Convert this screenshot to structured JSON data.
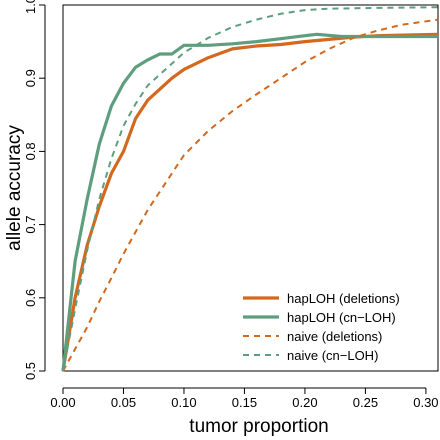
{
  "chart_data": {
    "type": "line",
    "title": "",
    "xlabel": "tumor proportion",
    "ylabel": "allele accuracy",
    "xlim": [
      0.0,
      0.31
    ],
    "ylim": [
      0.5,
      1.0
    ],
    "xticks": [
      "0.00",
      "0.05",
      "0.10",
      "0.15",
      "0.20",
      "0.25",
      "0.30"
    ],
    "yticks": [
      "0.5",
      "0.6",
      "0.7",
      "0.8",
      "0.9",
      "1.0"
    ],
    "grid": false,
    "legend_position": "bottom-right",
    "series": [
      {
        "name": "hapLOH (deletions)",
        "color": "#d2691e",
        "style": "solid",
        "points": [
          [
            0.0,
            0.5
          ],
          [
            0.01,
            0.6
          ],
          [
            0.02,
            0.672
          ],
          [
            0.03,
            0.725
          ],
          [
            0.04,
            0.77
          ],
          [
            0.05,
            0.8
          ],
          [
            0.06,
            0.845
          ],
          [
            0.07,
            0.87
          ],
          [
            0.08,
            0.885
          ],
          [
            0.09,
            0.9
          ],
          [
            0.1,
            0.912
          ],
          [
            0.11,
            0.92
          ],
          [
            0.12,
            0.928
          ],
          [
            0.14,
            0.94
          ],
          [
            0.16,
            0.944
          ],
          [
            0.18,
            0.946
          ],
          [
            0.2,
            0.95
          ],
          [
            0.22,
            0.953
          ],
          [
            0.24,
            0.956
          ],
          [
            0.26,
            0.958
          ],
          [
            0.31,
            0.96
          ]
        ]
      },
      {
        "name": "hapLOH (cn−LOH)",
        "color": "#5e9e7e",
        "style": "solid",
        "points": [
          [
            0.0,
            0.5
          ],
          [
            0.01,
            0.65
          ],
          [
            0.02,
            0.735
          ],
          [
            0.03,
            0.81
          ],
          [
            0.04,
            0.862
          ],
          [
            0.05,
            0.893
          ],
          [
            0.06,
            0.915
          ],
          [
            0.07,
            0.925
          ],
          [
            0.08,
            0.933
          ],
          [
            0.09,
            0.933
          ],
          [
            0.1,
            0.945
          ],
          [
            0.12,
            0.945
          ],
          [
            0.14,
            0.947
          ],
          [
            0.16,
            0.95
          ],
          [
            0.18,
            0.954
          ],
          [
            0.2,
            0.958
          ],
          [
            0.21,
            0.96
          ],
          [
            0.23,
            0.957
          ],
          [
            0.25,
            0.957
          ],
          [
            0.31,
            0.957
          ]
        ]
      },
      {
        "name": "naive (deletions)",
        "color": "#d2691e",
        "style": "dashed",
        "points": [
          [
            0.0,
            0.5
          ],
          [
            0.01,
            0.53
          ],
          [
            0.02,
            0.56
          ],
          [
            0.03,
            0.595
          ],
          [
            0.04,
            0.627
          ],
          [
            0.05,
            0.66
          ],
          [
            0.06,
            0.69
          ],
          [
            0.07,
            0.72
          ],
          [
            0.08,
            0.745
          ],
          [
            0.09,
            0.77
          ],
          [
            0.1,
            0.795
          ],
          [
            0.12,
            0.828
          ],
          [
            0.14,
            0.855
          ],
          [
            0.16,
            0.878
          ],
          [
            0.18,
            0.9
          ],
          [
            0.2,
            0.922
          ],
          [
            0.22,
            0.94
          ],
          [
            0.24,
            0.955
          ],
          [
            0.26,
            0.965
          ],
          [
            0.28,
            0.973
          ],
          [
            0.31,
            0.98
          ]
        ]
      },
      {
        "name": "naive (cn−LOH)",
        "color": "#5e9e7e",
        "style": "dashed",
        "points": [
          [
            0.0,
            0.5
          ],
          [
            0.01,
            0.585
          ],
          [
            0.02,
            0.665
          ],
          [
            0.03,
            0.735
          ],
          [
            0.04,
            0.79
          ],
          [
            0.05,
            0.835
          ],
          [
            0.06,
            0.865
          ],
          [
            0.07,
            0.89
          ],
          [
            0.08,
            0.905
          ],
          [
            0.09,
            0.92
          ],
          [
            0.1,
            0.935
          ],
          [
            0.12,
            0.955
          ],
          [
            0.14,
            0.97
          ],
          [
            0.16,
            0.98
          ],
          [
            0.18,
            0.988
          ],
          [
            0.2,
            0.993
          ],
          [
            0.22,
            0.995
          ],
          [
            0.26,
            0.996
          ],
          [
            0.31,
            0.997
          ]
        ]
      }
    ]
  }
}
